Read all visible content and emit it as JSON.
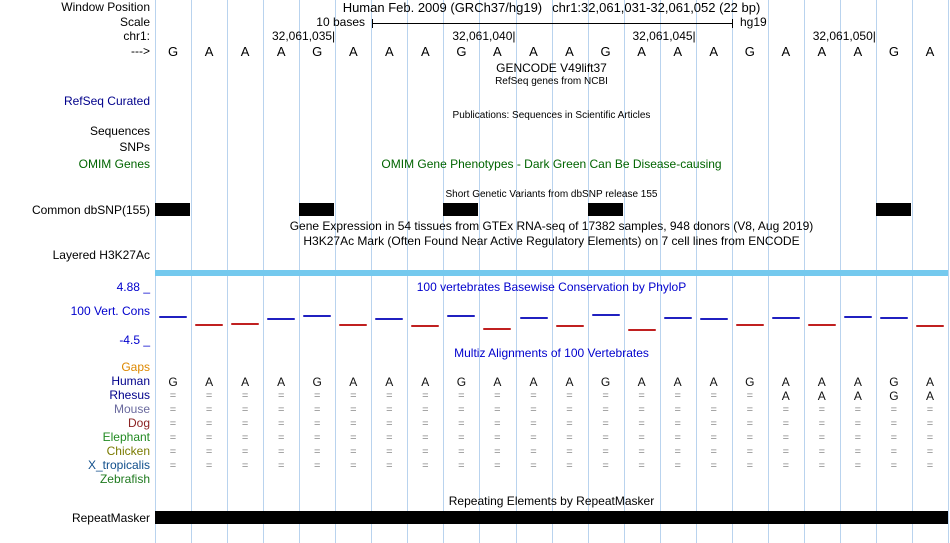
{
  "colors": {
    "grid": "#b9d3ee",
    "navy_text": "#00008b",
    "green_text": "#006400",
    "blue_text": "#0000cd",
    "orange_text": "#dd8800",
    "h3k27ac_bar": "#74c9ee",
    "cons_pos": "#2020c0",
    "cons_neg": "#c02020",
    "snp_box": "#000000",
    "repeat_bar": "#000000"
  },
  "title_bar": {
    "assembly": "Human Feb. 2009 (GRCh37/hg19)",
    "position": "chr1:32,061,031-32,061,052 (22 bp)"
  },
  "left_labels": {
    "window_position": "Window Position",
    "scale": "Scale",
    "chrom": "chr1:",
    "strand": "--->",
    "refseq": "RefSeq Curated",
    "sequences": "Sequences",
    "snps": "SNPs",
    "omim": "OMIM Genes",
    "dbsnp": "Common dbSNP(155)",
    "h3k27ac": "Layered H3K27Ac",
    "cons_max": "4.88 _",
    "cons": "100 Vert. Cons",
    "cons_min": "-4.5 _",
    "gaps": "Gaps",
    "repeatmasker": "RepeatMasker"
  },
  "scale_bar": {
    "label": "10 bases",
    "assembly": "hg19"
  },
  "ruler": {
    "ticks": [
      {
        "label": "32,061,035",
        "col": 4
      },
      {
        "label": "32,061,040",
        "col": 9
      },
      {
        "label": "32,061,045",
        "col": 14
      },
      {
        "label": "32,061,050",
        "col": 19
      }
    ]
  },
  "bases": [
    "G",
    "A",
    "A",
    "A",
    "G",
    "A",
    "A",
    "A",
    "G",
    "A",
    "A",
    "A",
    "G",
    "A",
    "A",
    "A",
    "G",
    "A",
    "A",
    "A",
    "G",
    "A"
  ],
  "track_titles": {
    "gencode": "GENCODE V49lift37",
    "refseq_desc": "RefSeq genes from NCBI",
    "publications": "Publications: Sequences in Scientific Articles",
    "omim_desc": "OMIM Gene Phenotypes - Dark Green Can Be Disease-causing",
    "dbsnp_desc": "Short Genetic Variants from dbSNP release 155",
    "gtex_desc": "Gene Expression in 54 tissues from GTEx RNA-seq of 17382 samples, 948 donors (V8, Aug 2019)",
    "h3k27ac_desc": "H3K27Ac Mark (Often Found Near Active Regulatory Elements) on 7 cell lines from ENCODE",
    "phylop_title": "100 vertebrates Basewise Conservation by PhyloP",
    "multiz_title": "Multiz Alignments of 100 Vertebrates",
    "repeat_title": "Repeating Elements by RepeatMasker"
  },
  "snp_boxes_cols": [
    0,
    4,
    8,
    12,
    20
  ],
  "conservation": {
    "max": 4.88,
    "min": -4.5,
    "values": [
      0.35,
      -0.2,
      -0.15,
      0.2,
      0.4,
      -0.2,
      0.25,
      -0.3,
      0.45,
      -0.5,
      0.3,
      -0.3,
      0.5,
      -0.55,
      0.3,
      0.2,
      -0.2,
      0.3,
      -0.2,
      0.35,
      0.3,
      -0.25
    ]
  },
  "multiz_species": [
    {
      "name": "Human",
      "color": "#00008b",
      "symbols": [
        "G",
        "A",
        "A",
        "A",
        "G",
        "A",
        "A",
        "A",
        "G",
        "A",
        "A",
        "A",
        "G",
        "A",
        "A",
        "A",
        "G",
        "A",
        "A",
        "A",
        "G",
        "A"
      ]
    },
    {
      "name": "Rhesus",
      "color": "#00008b",
      "symbols": [
        "=",
        "=",
        "=",
        "=",
        "=",
        "=",
        "=",
        "=",
        "=",
        "=",
        "=",
        "=",
        "=",
        "=",
        "=",
        "=",
        "=",
        "A",
        "A",
        "A",
        "G",
        "A"
      ]
    },
    {
      "name": "Mouse",
      "color": "#6a6a9e",
      "symbols": [
        "=",
        "=",
        "=",
        "=",
        "=",
        "=",
        "=",
        "=",
        "=",
        "=",
        "=",
        "=",
        "=",
        "=",
        "=",
        "=",
        "=",
        "=",
        "=",
        "=",
        "=",
        "="
      ]
    },
    {
      "name": "Dog",
      "color": "#8b2323",
      "symbols": [
        "=",
        "=",
        "=",
        "=",
        "=",
        "=",
        "=",
        "=",
        "=",
        "=",
        "=",
        "=",
        "=",
        "=",
        "=",
        "=",
        "=",
        "=",
        "=",
        "=",
        "=",
        "="
      ]
    },
    {
      "name": "Elephant",
      "color": "#228b22",
      "symbols": [
        "=",
        "=",
        "=",
        "=",
        "=",
        "=",
        "=",
        "=",
        "=",
        "=",
        "=",
        "=",
        "=",
        "=",
        "=",
        "=",
        "=",
        "=",
        "=",
        "=",
        "=",
        "="
      ]
    },
    {
      "name": "Chicken",
      "color": "#7a7a00",
      "symbols": [
        "=",
        "=",
        "=",
        "=",
        "=",
        "=",
        "=",
        "=",
        "=",
        "=",
        "=",
        "=",
        "=",
        "=",
        "=",
        "=",
        "=",
        "=",
        "=",
        "=",
        "=",
        "="
      ]
    },
    {
      "name": "X_tropicalis",
      "color": "#104e8b",
      "symbols": [
        "=",
        "=",
        "=",
        "=",
        "=",
        "=",
        "=",
        "=",
        "=",
        "=",
        "=",
        "=",
        "=",
        "=",
        "=",
        "=",
        "=",
        "=",
        "=",
        "=",
        "=",
        "="
      ]
    },
    {
      "name": "Zebrafish",
      "color": "#1f7a1f",
      "symbols": []
    }
  ]
}
